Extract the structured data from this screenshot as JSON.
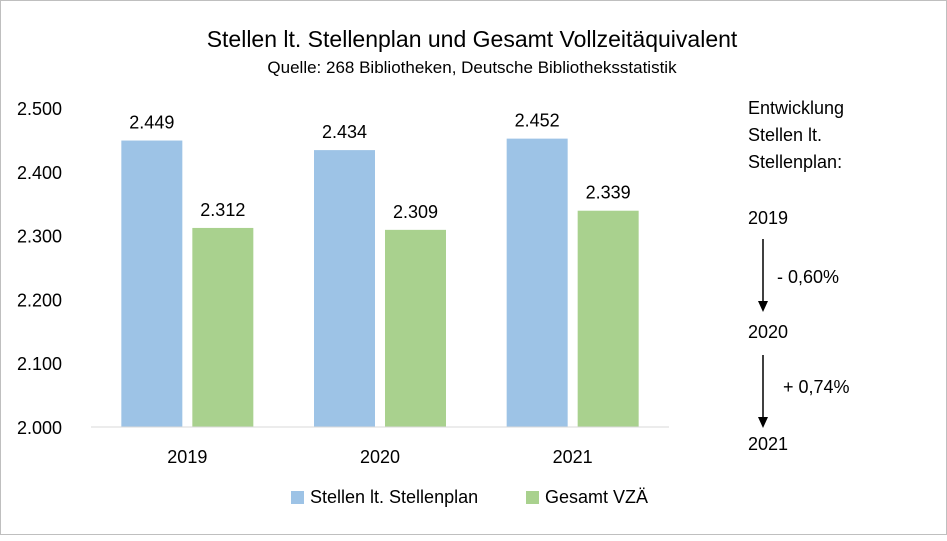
{
  "chart_data": {
    "type": "bar",
    "title": "Stellen lt. Stellenplan und Gesamt Vollzeitäquivalent",
    "subtitle": "Quelle: 268 Bibliotheken, Deutsche Bibliotheksstatistik",
    "categories": [
      "2019",
      "2020",
      "2021"
    ],
    "series": [
      {
        "name": "Stellen lt. Stellenplan",
        "values": [
          2449,
          2434,
          2452
        ],
        "labels": [
          "2.449",
          "2.434",
          "2.452"
        ],
        "color": "#9dc3e6"
      },
      {
        "name": "Gesamt VZÄ",
        "values": [
          2312,
          2309,
          2339
        ],
        "labels": [
          "2.312",
          "2.309",
          "2.339"
        ],
        "color": "#a9d18e"
      }
    ],
    "ylim": [
      2000,
      2500
    ],
    "yticks": [
      2000,
      2100,
      2200,
      2300,
      2400,
      2500
    ],
    "ytick_labels": [
      "2.000",
      "2.100",
      "2.200",
      "2.300",
      "2.400",
      "2.500"
    ],
    "grid": false,
    "legend": "bottom",
    "annotation": {
      "heading": [
        "Entwicklung",
        "Stellen lt.",
        "Stellenplan:"
      ],
      "years": [
        "2019",
        "2020",
        "2021"
      ],
      "changes": [
        "- 0,60%",
        "+ 0,74%"
      ]
    }
  }
}
